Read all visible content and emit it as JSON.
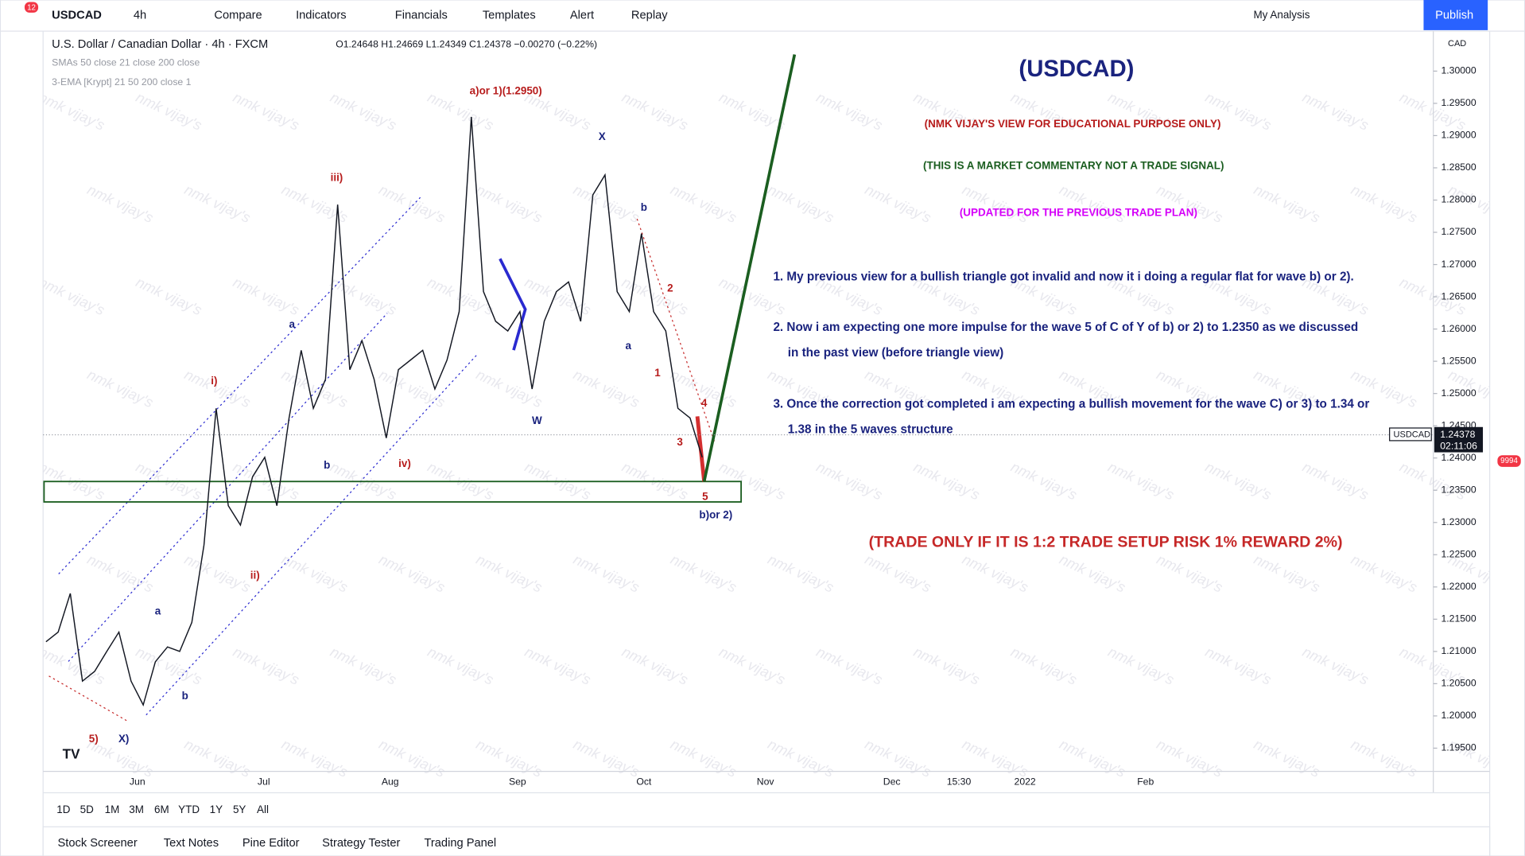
{
  "toolbar": {
    "symbol": "USDCAD",
    "interval": "4h",
    "items": [
      "Compare",
      "Indicators",
      "Financials",
      "Templates",
      "Alert",
      "Replay"
    ],
    "layout": "My Analysis",
    "publish": "Publish",
    "badge": "12"
  },
  "legend": {
    "title": "U.S. Dollar / Canadian Dollar · 4h · FXCM",
    "ohlc": "O1.24648 H1.24669 L1.24349 C1.24378 −0.00270 (−0.22%)",
    "indicators": [
      "SMAs 50 close 21 close 200 close",
      "3-EMA [Krypt] 21 50 200 close 1"
    ]
  },
  "chart": {
    "type": "line",
    "currency": "CAD",
    "symbol_label": "USDCAD",
    "last_price": {
      "value": 1.24378,
      "label": "1.24378"
    },
    "countdown": "02:11:06",
    "ylim": [
      1.1914,
      1.3062
    ],
    "yticks": [
      {
        "value": 1.3,
        "label": "1.30000"
      },
      {
        "value": 1.295,
        "label": "1.29500"
      },
      {
        "value": 1.29,
        "label": "1.29000"
      },
      {
        "value": 1.285,
        "label": "1.28500"
      },
      {
        "value": 1.28,
        "label": "1.28000"
      },
      {
        "value": 1.275,
        "label": "1.27500"
      },
      {
        "value": 1.27,
        "label": "1.27000"
      },
      {
        "value": 1.265,
        "label": "1.26500"
      },
      {
        "value": 1.26,
        "label": "1.26000"
      },
      {
        "value": 1.255,
        "label": "1.25500"
      },
      {
        "value": 1.25,
        "label": "1.25000"
      },
      {
        "value": 1.245,
        "label": "1.24500"
      },
      {
        "value": 1.24,
        "label": "1.24000"
      },
      {
        "value": 1.235,
        "label": "1.23500"
      },
      {
        "value": 1.23,
        "label": "1.23000"
      },
      {
        "value": 1.225,
        "label": "1.22500"
      },
      {
        "value": 1.22,
        "label": "1.22000"
      },
      {
        "value": 1.215,
        "label": "1.21500"
      },
      {
        "value": 1.21,
        "label": "1.21000"
      },
      {
        "value": 1.205,
        "label": "1.20500"
      },
      {
        "value": 1.2,
        "label": "1.20000"
      },
      {
        "value": 1.195,
        "label": "1.19500"
      }
    ],
    "categories": [
      "Jun",
      "Jul",
      "Aug",
      "Sep",
      "Oct",
      "Nov",
      "Dec",
      "15:30",
      "2022",
      "Feb"
    ],
    "values": [
      1.2115,
      1.213,
      1.219,
      1.2054,
      1.2069,
      1.21,
      1.213,
      1.2054,
      1.2017,
      1.2084,
      1.2107,
      1.21,
      1.2145,
      1.2265,
      1.2477,
      1.2326,
      1.2296,
      1.2371,
      1.2401,
      1.2326,
      1.2462,
      1.2567,
      1.2477,
      1.2522,
      1.2793,
      1.2537,
      1.2582,
      1.2522,
      1.2431,
      1.2537,
      1.2552,
      1.2567,
      1.2507,
      1.2552,
      1.2627,
      1.2929,
      1.2658,
      1.2612,
      1.2597,
      1.2627,
      1.2507,
      1.2612,
      1.2658,
      1.2673,
      1.2612,
      1.2808,
      1.2839,
      1.2658,
      1.2627,
      1.2748,
      1.2627,
      1.2597,
      1.2477,
      1.2462,
      1.2401
    ],
    "color": "#131722"
  },
  "wave_labels": [
    "a)or 1)(1.2950)",
    "X",
    "iii)",
    "b",
    "2",
    "a",
    "a",
    "1",
    "4",
    "i)",
    "W",
    "3",
    "b",
    "iv)",
    "5",
    "b)or 2)",
    "ii)",
    "a",
    "b",
    "5)",
    "X)"
  ],
  "annotations": {
    "heading": "(USDCAD)",
    "disclaimer": "(NMK VIJAY'S VIEW FOR EDUCATIONAL PURPOSE ONLY)",
    "commentary": "(THIS IS A MARKET COMMENTARY NOT A TRADE SIGNAL)",
    "updated": "(UPDATED FOR THE PREVIOUS TRADE PLAN)",
    "points": [
      "1. My previous view for a bullish triangle got invalid and now it i doing a regular flat for wave b) or 2).",
      "2. Now i am expecting one more impulse for the wave 5 of C of Y of b) or 2) to 1.2350 as we discussed",
      "in the past view (before triangle view)",
      "3. Once the correction got completed i am expecting a bullish movement for the wave C) or 3) to 1.34 or",
      "1.38 in the 5 waves structure"
    ],
    "risk": "(TRADE ONLY IF IT IS 1:2 TRADE SETUP RISK 1% REWARD 2%)",
    "watermark": "nmk vijay's"
  },
  "ranges": [
    "1D",
    "5D",
    "1M",
    "3M",
    "6M",
    "YTD",
    "1Y",
    "5Y",
    "All"
  ],
  "tabs": [
    "Stock Screener",
    "Text Notes",
    "Pine Editor",
    "Strategy Tester",
    "Trading Panel"
  ],
  "side_badge": "9994"
}
